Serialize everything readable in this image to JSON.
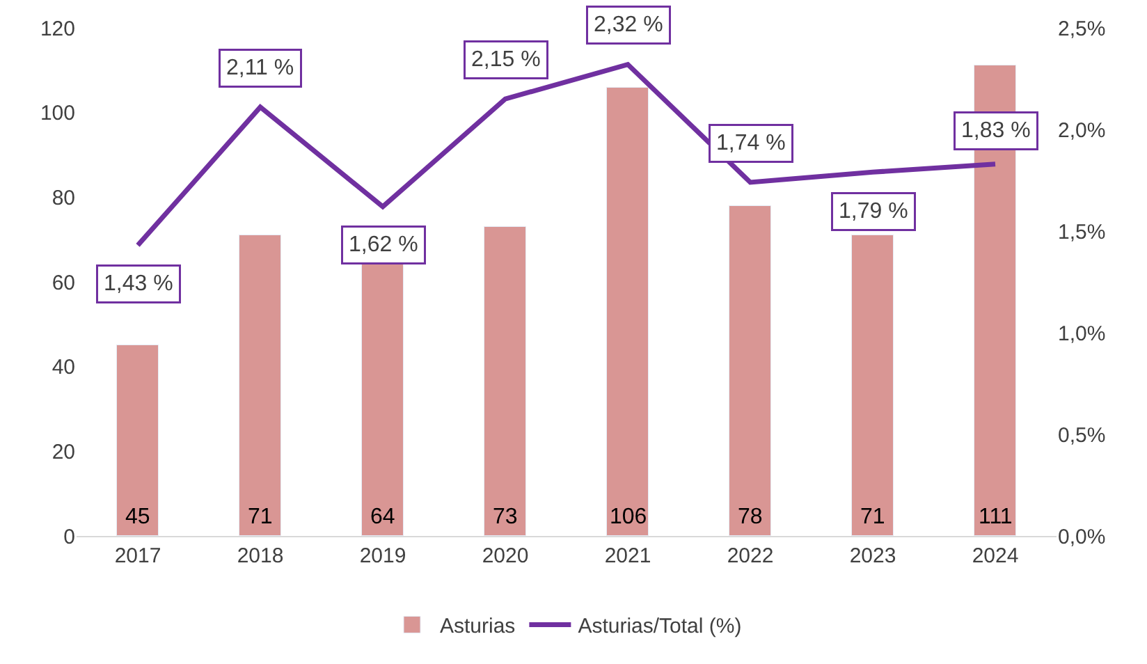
{
  "chart_data": {
    "type": "bar",
    "categories": [
      "2017",
      "2018",
      "2019",
      "2020",
      "2021",
      "2022",
      "2023",
      "2024"
    ],
    "series": [
      {
        "name": "Asturias",
        "color": "#d99694",
        "values": [
          45,
          71,
          64,
          73,
          106,
          78,
          71,
          111
        ]
      },
      {
        "name": "Asturias/Total (%)",
        "type": "line",
        "axis": "y2",
        "color": "#7030a0",
        "values": [
          1.43,
          2.11,
          1.62,
          2.15,
          2.32,
          1.74,
          1.79,
          1.83
        ],
        "value_labels": [
          "1,43 %",
          "2,11 %",
          "1,62 %",
          "2,15 %",
          "2,32 %",
          "1,74 %",
          "1,79 %",
          "1,83 %"
        ]
      }
    ],
    "data_labels": true,
    "ylim": [
      0,
      120
    ],
    "yticks": [
      0,
      20,
      40,
      60,
      80,
      100,
      120
    ],
    "y2lim": [
      0,
      2.5
    ],
    "y2ticks": [
      {
        "value": 0,
        "label": "0,0%"
      },
      {
        "value": 0.5,
        "label": "0,5%"
      },
      {
        "value": 1,
        "label": "1,0%"
      },
      {
        "value": 1.5,
        "label": "1,5%"
      },
      {
        "value": 2,
        "label": "2,0%"
      },
      {
        "value": 2.5,
        "label": "2,5%"
      }
    ],
    "legend": "bottom",
    "marker": "none"
  }
}
